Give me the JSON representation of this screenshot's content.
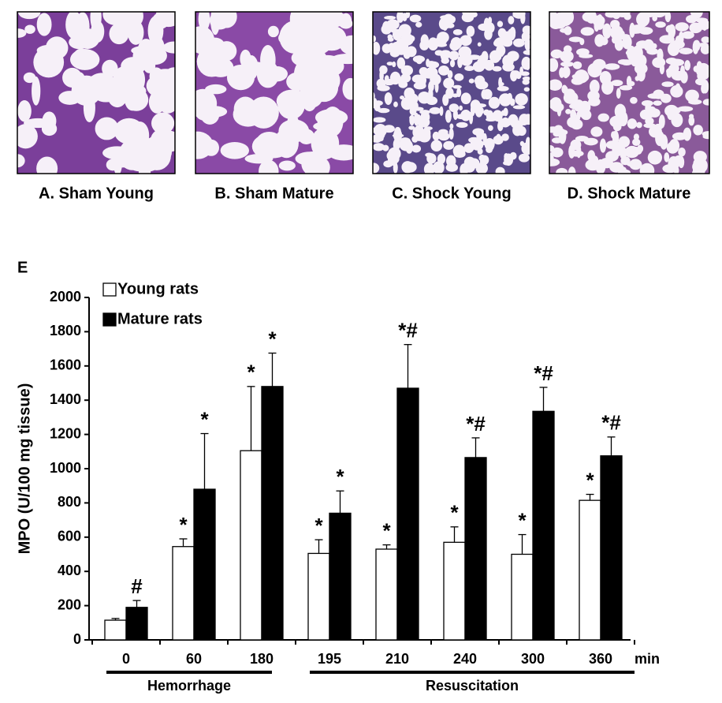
{
  "panels": [
    "A. Sham Young",
    "B. Sham Mature",
    "C. Shock Young",
    "D. Shock Mature"
  ],
  "chart_data": {
    "type": "bar",
    "panel_label": "E",
    "y_label": "MPO (U/100 mg tissue)",
    "x_unit": "min",
    "categories": [
      "0",
      "60",
      "180",
      "195",
      "210",
      "240",
      "300",
      "360"
    ],
    "groups": [
      {
        "label": "Hemorrhage",
        "range": [
          0,
          2
        ]
      },
      {
        "label": "Resuscitation",
        "range": [
          3,
          7
        ]
      }
    ],
    "series": [
      {
        "name": "Young rats",
        "color": "#ffffff",
        "values": [
          115,
          545,
          1105,
          505,
          530,
          570,
          500,
          815
        ],
        "error": [
          10,
          45,
          375,
          80,
          25,
          90,
          115,
          35
        ],
        "marks": [
          null,
          "*",
          "*",
          "*",
          "*",
          "*",
          "*",
          "*"
        ]
      },
      {
        "name": "Mature rats",
        "color": "#000000",
        "values": [
          190,
          880,
          1480,
          740,
          1470,
          1065,
          1335,
          1075
        ],
        "error": [
          40,
          325,
          195,
          130,
          255,
          115,
          140,
          110
        ],
        "marks": [
          "#",
          "*",
          "*",
          "*",
          "*#",
          "*#",
          "*#",
          "*#"
        ]
      }
    ],
    "ylim": [
      0,
      2000
    ],
    "yticks": [
      0,
      200,
      400,
      600,
      800,
      1000,
      1200,
      1400,
      1600,
      1800,
      2000
    ]
  }
}
